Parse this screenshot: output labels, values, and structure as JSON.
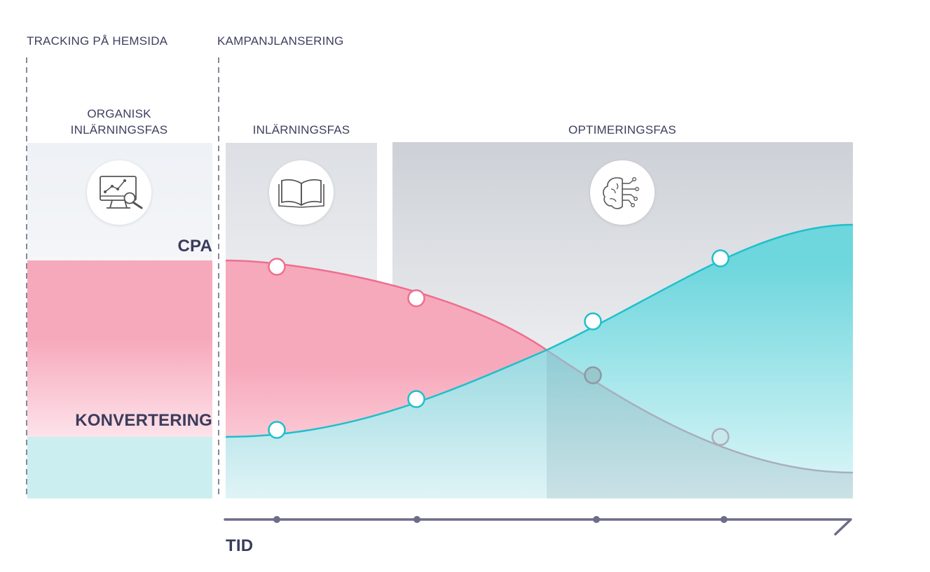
{
  "milestones": {
    "tracking": "TRACKING PÅ HEMSIDA",
    "launch": "KAMPANJLANSERING"
  },
  "phases": [
    {
      "title_line1": "ORGANISK",
      "title_line2": "INLÄRNINGSFAS",
      "icon": "analytics-monitor-icon"
    },
    {
      "title_line1": "INLÄRNINGSFAS",
      "icon": "book-icon"
    },
    {
      "title_line1": "OPTIMERINGSFAS",
      "icon": "brain-network-icon"
    }
  ],
  "series": {
    "cpa": {
      "name": "CPA",
      "color": "#f06a8c"
    },
    "conversion": {
      "name": "KONVERTERING",
      "color": "#22c2cc"
    }
  },
  "axis": {
    "x_label": "TID",
    "color": "#6d6c8a"
  }
}
